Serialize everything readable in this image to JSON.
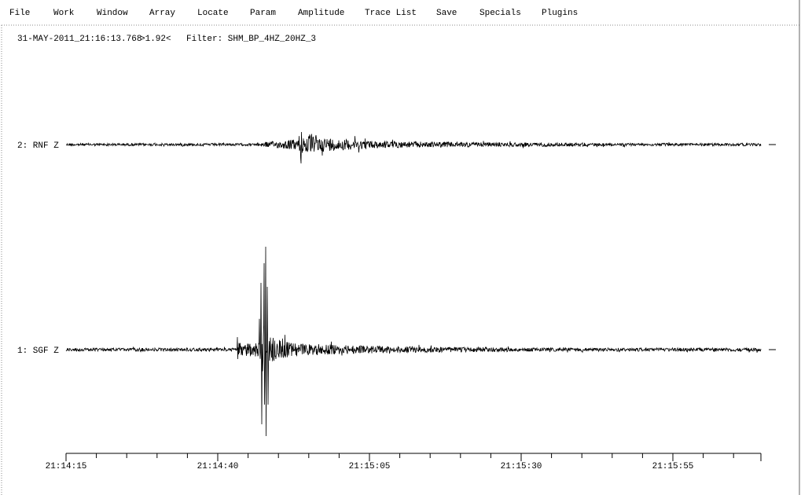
{
  "menu": [
    "File",
    "Work",
    "Window",
    "Array",
    "Locate",
    "Param",
    "Amplitude",
    "Trace List",
    "Save",
    "Specials",
    "Plugins"
  ],
  "status": {
    "time": "31-MAY-2011_21:16:13.768",
    "amplitude": ">1.92<",
    "filter": "Filter: SHM_BP_4HZ_20HZ_3"
  },
  "traces": [
    {
      "label": "2: RNF Z"
    },
    {
      "label": "1: SGF Z"
    }
  ],
  "time_axis": {
    "labels": [
      "21:14:15",
      "21:14:40",
      "21:15:05",
      "21:15:30",
      "21:15:55"
    ]
  }
}
